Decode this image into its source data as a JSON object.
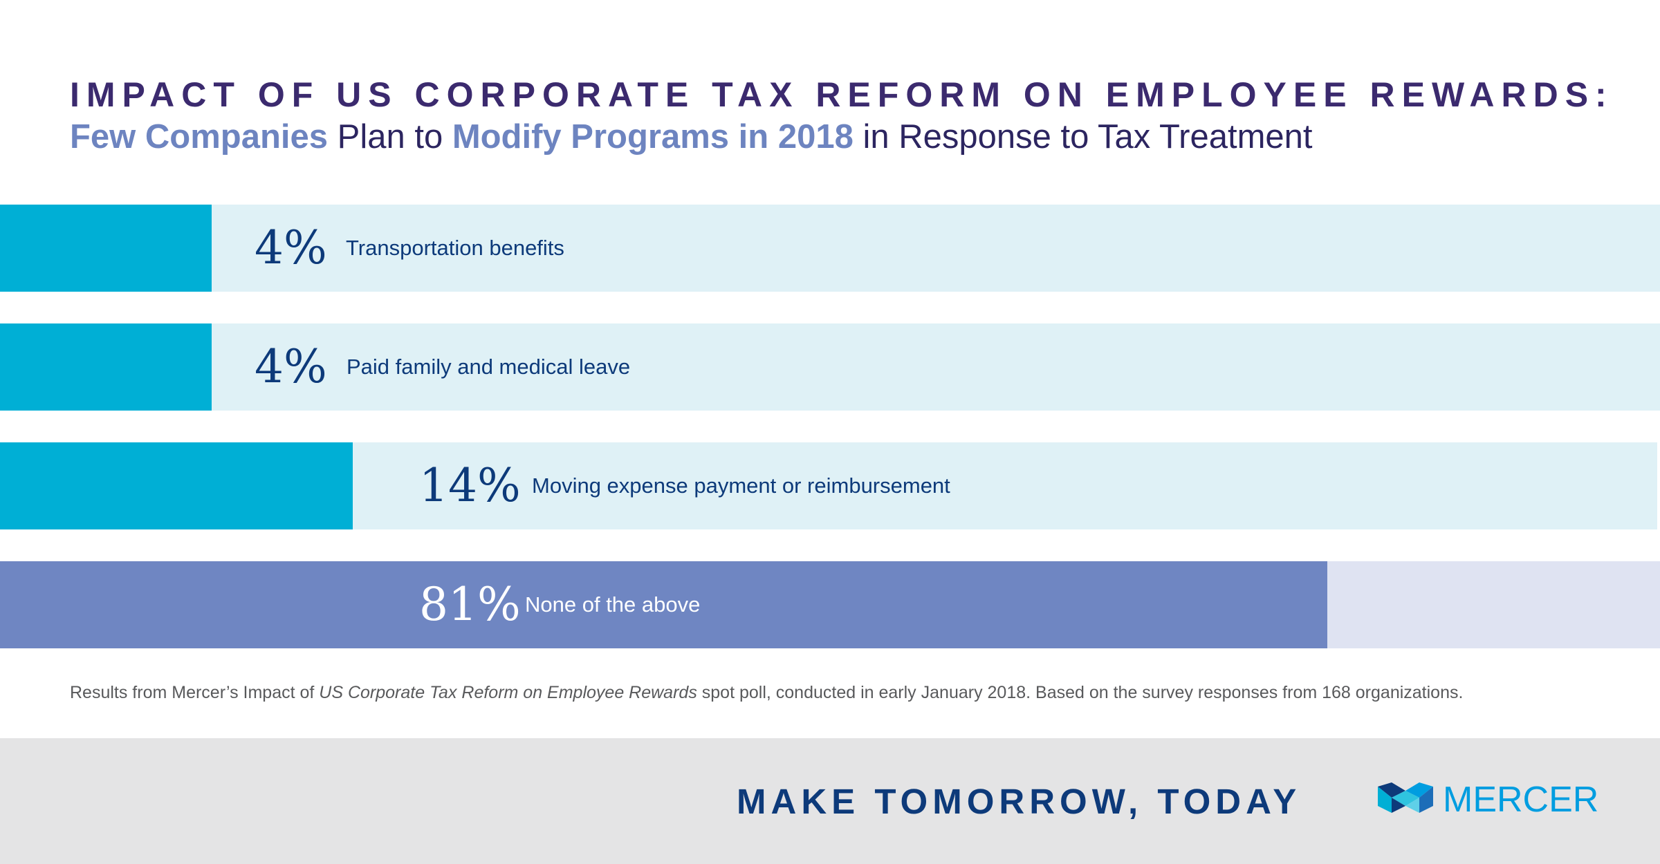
{
  "header": {
    "title": "IMPACT OF US CORPORATE TAX REFORM ON EMPLOYEE REWARDS:",
    "subtitle_parts": [
      "Few Companies",
      " Plan to ",
      "Modify Programs in 2018",
      " in Response to Tax Treatment"
    ]
  },
  "chart_data": {
    "type": "bar",
    "orientation": "horizontal",
    "categories": [
      "Transportation benefits",
      "Paid family and medical leave",
      "Moving expense payment or reimbursement",
      "None of the above"
    ],
    "values": [
      4,
      4,
      14,
      81
    ],
    "value_labels": [
      "4%",
      "4%",
      "14%",
      "81%"
    ],
    "unit": "%",
    "xlim": [
      0,
      100
    ],
    "grid": false,
    "legend": "none",
    "title": "IMPACT OF US CORPORATE TAX REFORM ON EMPLOYEE REWARDS:",
    "subtitle": "Few Companies Plan to Modify Programs in 2018 in Response to Tax Treatment",
    "colors": {
      "fill": [
        "#00afd5",
        "#00afd5",
        "#00afd5",
        "#6f86c2"
      ],
      "track": [
        "#dff1f6",
        "#dff1f6",
        "#dff1f6",
        "#dfe3f2"
      ],
      "value_text": [
        "#0d3a7a",
        "#0d3a7a",
        "#0d3a7a",
        "#ffffff"
      ],
      "label_text": [
        "#0d3a7a",
        "#0d3a7a",
        "#0d3a7a",
        "#ffffff"
      ]
    }
  },
  "footnote": {
    "before": "Results from Mercer’s Impact of ",
    "italic": "US Corporate Tax Reform on Employee Rewards",
    "after": " spot poll, conducted in early January 2018. Based on the survey responses from 168 organizations."
  },
  "footer": {
    "tagline": "MAKE TOMORROW, TODAY",
    "brand": "MERCER",
    "logo_icon": "mercer-logo-icon",
    "colors": {
      "band": "#e4e4e5",
      "tagline": "#0d3a7a",
      "brand": "#009de0"
    }
  }
}
